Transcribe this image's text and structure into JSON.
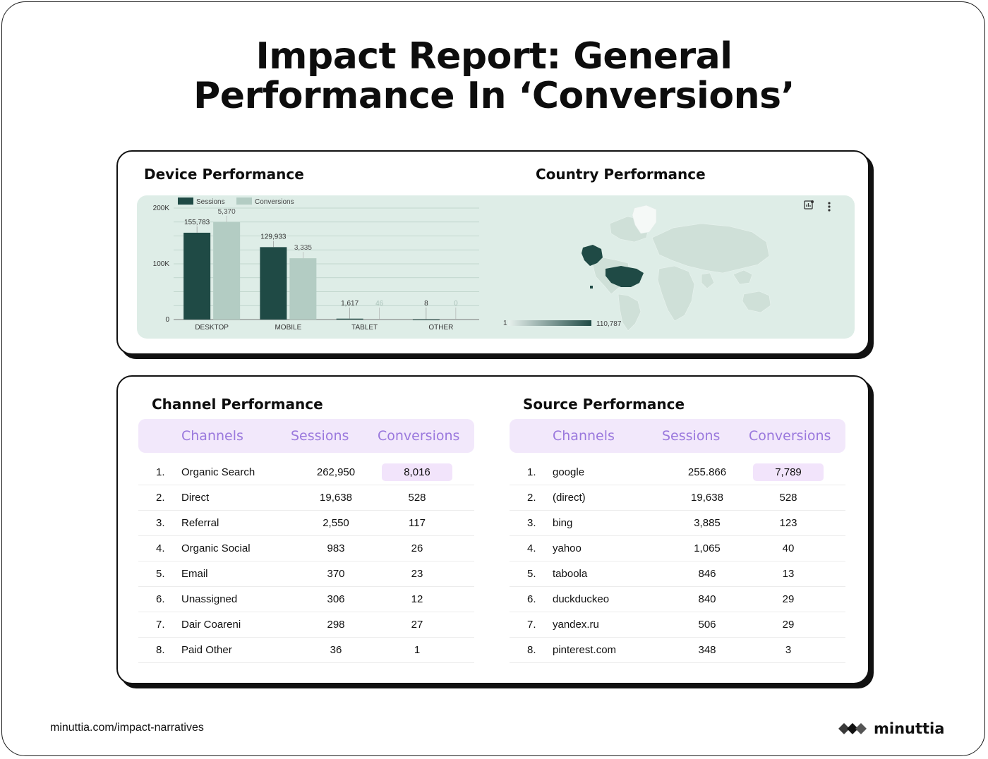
{
  "page": {
    "title_line1": "Impact Report: General",
    "title_line2": "Performance In ‘Conversions’",
    "footer_url": "minuttia.com/impact-narratives",
    "logo_text": "minuttia"
  },
  "colors": {
    "sessions": "#1f4a45",
    "conversions": "#b3ccc3",
    "panel_bg": "#deede7",
    "header_bg": "#f2e8fb",
    "header_text": "#9a78dd"
  },
  "device": {
    "section_title": "Device Performance"
  },
  "country": {
    "section_title": "Country Performance",
    "legend_min": "1",
    "legend_max": "110,787"
  },
  "chart_data": {
    "type": "bar",
    "categories": [
      "DESKTOP",
      "MOBILE",
      "TABLET",
      "OTHER"
    ],
    "series": [
      {
        "name": "Sessions",
        "values": [
          155783,
          129933,
          1617,
          8
        ],
        "labels": [
          "155,783",
          "129,933",
          "1,617",
          "8"
        ]
      },
      {
        "name": "Conversions",
        "values": [
          5370,
          3335,
          46,
          0
        ],
        "labels": [
          "5,370",
          "3,335",
          "46",
          "0"
        ],
        "display_values": [
          175000,
          110000,
          0,
          0
        ]
      }
    ],
    "yticks": [
      "200K",
      "100K",
      "0"
    ],
    "ylim": [
      0,
      200000
    ],
    "legend_position": "top-left",
    "grid": true
  },
  "channel": {
    "section_title": "Channel Performance",
    "headers": [
      "Channels",
      "Sessions",
      "Conversions"
    ],
    "rows": [
      {
        "num": "1.",
        "name": "Organic Search",
        "sessions": "262,950",
        "conversions": "8,016"
      },
      {
        "num": "2.",
        "name": "Direct",
        "sessions": "19,638",
        "conversions": "528"
      },
      {
        "num": "3.",
        "name": "Referral",
        "sessions": "2,550",
        "conversions": "117"
      },
      {
        "num": "4.",
        "name": "Organic Social",
        "sessions": "983",
        "conversions": "26"
      },
      {
        "num": "5.",
        "name": "Email",
        "sessions": "370",
        "conversions": "23"
      },
      {
        "num": "6.",
        "name": "Unassigned",
        "sessions": "306",
        "conversions": "12"
      },
      {
        "num": "7.",
        "name": "Dair Coareni",
        "sessions": "298",
        "conversions": "27"
      },
      {
        "num": "8.",
        "name": "Paid Other",
        "sessions": "36",
        "conversions": "1"
      }
    ]
  },
  "source": {
    "section_title": "Source Performance",
    "headers": [
      "Channels",
      "Sessions",
      "Conversions"
    ],
    "rows": [
      {
        "num": "1.",
        "name": "google",
        "sessions": "255.866",
        "conversions": "7,789"
      },
      {
        "num": "2.",
        "name": "(direct)",
        "sessions": "19,638",
        "conversions": "528"
      },
      {
        "num": "3.",
        "name": "bing",
        "sessions": "3,885",
        "conversions": "123"
      },
      {
        "num": "4.",
        "name": "yahoo",
        "sessions": "1,065",
        "conversions": "40"
      },
      {
        "num": "5.",
        "name": "taboola",
        "sessions": "846",
        "conversions": "13"
      },
      {
        "num": "6.",
        "name": "duckduckeo",
        "sessions": "840",
        "conversions": "29"
      },
      {
        "num": "7.",
        "name": "yandex.ru",
        "sessions": "506",
        "conversions": "29"
      },
      {
        "num": "8.",
        "name": "pinterest.com",
        "sessions": "348",
        "conversions": "3"
      }
    ]
  }
}
